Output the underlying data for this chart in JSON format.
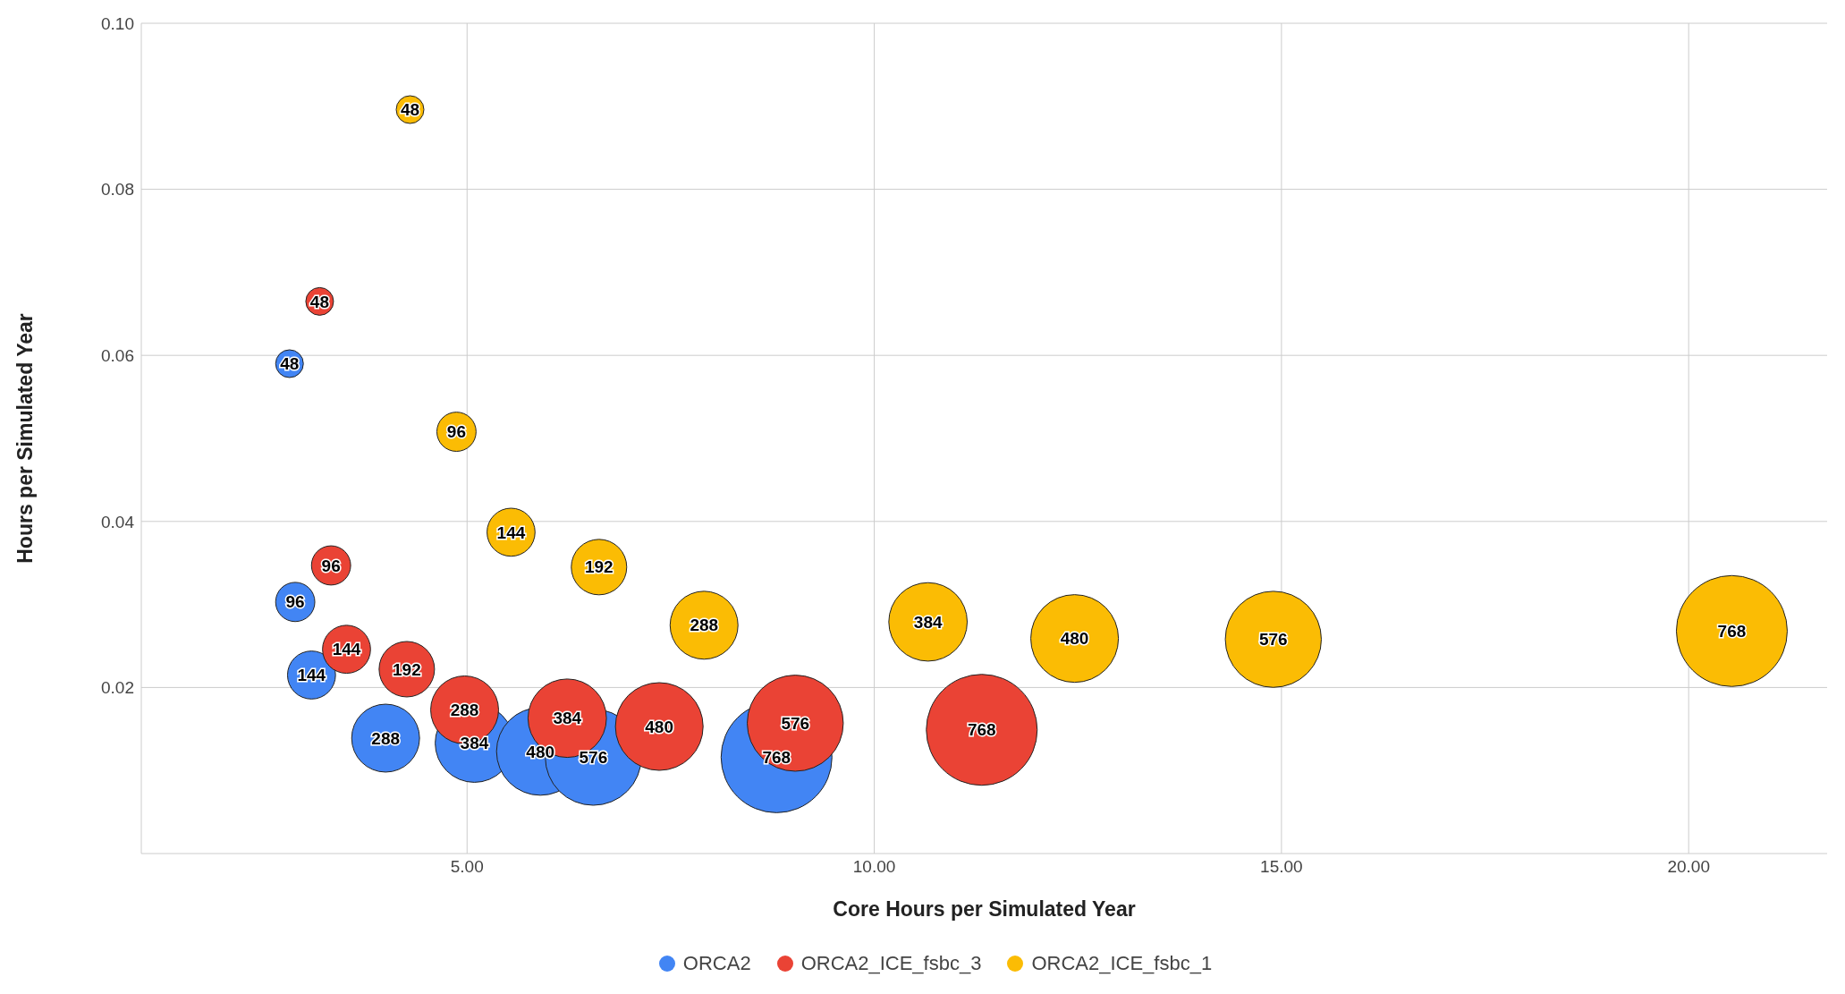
{
  "chart_data": {
    "type": "bubble",
    "xlabel": "Core Hours per Simulated Year",
    "ylabel": "Hours per Simulated Year",
    "xlim": [
      1,
      21.7
    ],
    "ylim": [
      0,
      0.1
    ],
    "xticks": [
      {
        "value": 5,
        "label": "5.00"
      },
      {
        "value": 10,
        "label": "10.00"
      },
      {
        "value": 15,
        "label": "15.00"
      },
      {
        "value": 20,
        "label": "20.00"
      }
    ],
    "yticks": [
      {
        "value": 0.02,
        "label": "0.02"
      },
      {
        "value": 0.04,
        "label": "0.04"
      },
      {
        "value": 0.06,
        "label": "0.06"
      },
      {
        "value": 0.08,
        "label": "0.08"
      },
      {
        "value": 0.1,
        "label": "0.10"
      }
    ],
    "grid": true,
    "legend": "bottom",
    "series": [
      {
        "name": "ORCA2",
        "color": "#4285f4",
        "x": [
          2.82,
          2.89,
          3.09,
          4.0,
          5.09,
          5.9,
          6.55,
          8.8
        ],
        "values": [
          0.059,
          0.0303,
          0.0215,
          0.0139,
          0.0133,
          0.0123,
          0.0116,
          0.0116
        ],
        "sizes": [
          0.0625,
          0.125,
          0.1875,
          0.375,
          0.5,
          0.625,
          0.75,
          1
        ]
      },
      {
        "name": "ORCA2_ICE_fsbc_3",
        "color": "#ea4335",
        "x": [
          3.19,
          3.33,
          3.52,
          4.26,
          4.97,
          6.23,
          7.36,
          9.03,
          11.32
        ],
        "values": [
          0.0665,
          0.0347,
          0.0246,
          0.0222,
          0.0173,
          0.0163,
          0.0153,
          0.0157,
          0.0149
        ],
        "sizes": [
          0.0625,
          0.125,
          0.1875,
          0.25,
          0.375,
          0.5,
          0.625,
          0.75,
          1
        ]
      },
      {
        "name": "ORCA2_ICE_fsbc_1",
        "color": "#fbbc04",
        "x": [
          4.3,
          4.87,
          5.54,
          6.62,
          7.91,
          10.66,
          12.46,
          14.9,
          20.53
        ],
        "values": [
          0.0896,
          0.0508,
          0.0387,
          0.0345,
          0.0275,
          0.0279,
          0.0259,
          0.0258,
          0.0268
        ],
        "sizes": [
          0.0625,
          0.125,
          0.1875,
          0.25,
          0.375,
          0.5,
          0.625,
          0.75,
          1
        ]
      }
    ],
    "annotations": [
      {
        "text": "48",
        "x": 2.82,
        "y": 0.059
      },
      {
        "text": "96",
        "x": 2.89,
        "y": 0.0303
      },
      {
        "text": "144",
        "x": 3.09,
        "y": 0.0215
      },
      {
        "text": "288",
        "x": 4.0,
        "y": 0.0139
      },
      {
        "text": "384",
        "x": 5.09,
        "y": 0.0133
      },
      {
        "text": "480",
        "x": 5.9,
        "y": 0.0123
      },
      {
        "text": "576",
        "x": 6.55,
        "y": 0.0116
      },
      {
        "text": "768",
        "x": 8.8,
        "y": 0.0116
      },
      {
        "text": "48",
        "x": 3.19,
        "y": 0.0665
      },
      {
        "text": "96",
        "x": 3.33,
        "y": 0.0347
      },
      {
        "text": "144",
        "x": 3.52,
        "y": 0.0246
      },
      {
        "text": "192",
        "x": 4.26,
        "y": 0.0222
      },
      {
        "text": "288",
        "x": 4.97,
        "y": 0.0173
      },
      {
        "text": "384",
        "x": 6.23,
        "y": 0.0163
      },
      {
        "text": "480",
        "x": 7.36,
        "y": 0.0153
      },
      {
        "text": "576",
        "x": 9.03,
        "y": 0.0157
      },
      {
        "text": "768",
        "x": 11.32,
        "y": 0.0149
      },
      {
        "text": "48",
        "x": 4.3,
        "y": 0.0896
      },
      {
        "text": "96",
        "x": 4.87,
        "y": 0.0508
      },
      {
        "text": "144",
        "x": 5.54,
        "y": 0.0387
      },
      {
        "text": "192",
        "x": 6.62,
        "y": 0.0345
      },
      {
        "text": "288",
        "x": 7.91,
        "y": 0.0275
      },
      {
        "text": "384",
        "x": 10.66,
        "y": 0.0279
      },
      {
        "text": "480",
        "x": 12.46,
        "y": 0.0259
      },
      {
        "text": "576",
        "x": 14.9,
        "y": 0.0258
      },
      {
        "text": "768",
        "x": 20.53,
        "y": 0.0268
      }
    ]
  }
}
